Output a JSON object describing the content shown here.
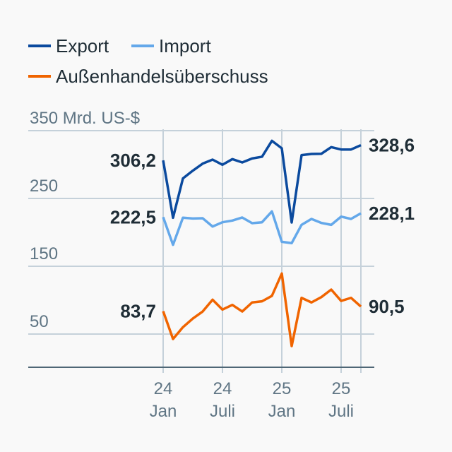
{
  "chart_data": {
    "type": "line",
    "title": "",
    "ylabel_unit": "Mrd. US-$",
    "ylim": [
      0,
      350
    ],
    "yticks": [
      {
        "value": 350,
        "label": "350 Mrd. US-$"
      },
      {
        "value": 250,
        "label": "250"
      },
      {
        "value": 150,
        "label": "150"
      },
      {
        "value": 50,
        "label": "50"
      }
    ],
    "xticks": [
      {
        "index": 0,
        "year": "24",
        "month": "Jan"
      },
      {
        "index": 6,
        "year": "24",
        "month": "Juli"
      },
      {
        "index": 12,
        "year": "25",
        "month": "Jan"
      },
      {
        "index": 18,
        "year": "25",
        "month": "Juli"
      }
    ],
    "x": [
      "2024-01",
      "2024-02",
      "2024-03",
      "2024-04",
      "2024-05",
      "2024-06",
      "2024-07",
      "2024-08",
      "2024-09",
      "2024-10",
      "2024-11",
      "2024-12",
      "2025-01",
      "2025-02",
      "2025-03",
      "2025-04",
      "2025-05",
      "2025-06",
      "2025-07",
      "2025-08",
      "2025-09"
    ],
    "legend_position": "top-left",
    "series": [
      {
        "name": "Export",
        "color": "#0b4a9e",
        "values": [
          306.2,
          221.5,
          279.5,
          291,
          301.4,
          307.3,
          299.7,
          308,
          303.1,
          309,
          311.5,
          335,
          324,
          214.6,
          313.9,
          315.6,
          315.9,
          325.7,
          322.2,
          322.2,
          328.6
        ],
        "start_label": "306,2",
        "end_label": "328,6"
      },
      {
        "name": "Import",
        "color": "#64a8ea",
        "values": [
          222.5,
          181.6,
          221.6,
          220.5,
          220.8,
          208.6,
          214.9,
          217.4,
          221.9,
          213.5,
          214.9,
          230.9,
          186.1,
          184.1,
          211.1,
          219.8,
          213.9,
          211.1,
          223.2,
          219.8,
          228.1
        ],
        "start_label": "222,5",
        "end_label": "228,1"
      },
      {
        "name": "Außenhandelsüberschuss",
        "color": "#f06400",
        "values": [
          83.7,
          42.7,
          60.1,
          72.9,
          83.3,
          100.7,
          86.1,
          93,
          83.3,
          96.6,
          98.3,
          106.3,
          139.3,
          32.3,
          103.4,
          96.6,
          104.5,
          115.6,
          98.9,
          103.4,
          90.5
        ],
        "start_label": "83,7",
        "end_label": "90,5"
      }
    ]
  }
}
